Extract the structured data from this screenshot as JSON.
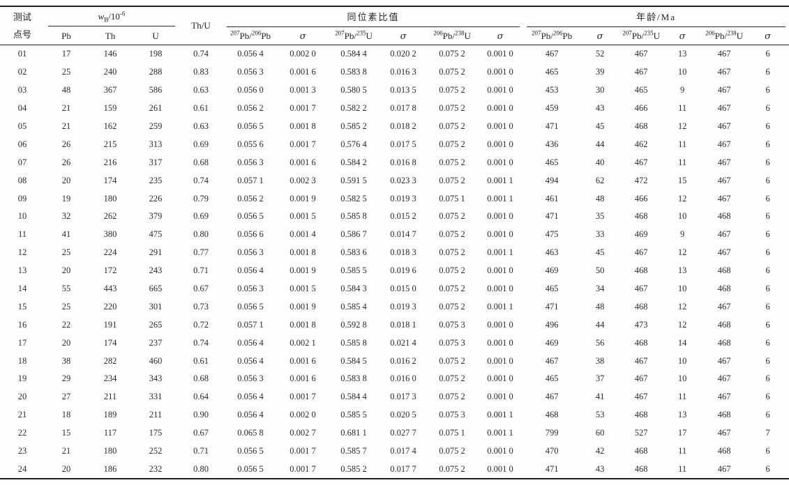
{
  "table": {
    "header": {
      "point_id_line1": "测试",
      "point_id_line2": "点号",
      "wb": {
        "w": "w",
        "sub": "B",
        "mid": "/10",
        "exp": "-6"
      },
      "thu_label": "Th/U",
      "isotope_group_label": "同位素比值",
      "age_group_label": "年龄/Ma",
      "wb_cols": [
        "Pb",
        "Th",
        "U"
      ],
      "sigma": "σ",
      "ratios": [
        {
          "sup1": "207",
          "base1": "Pb/",
          "sup2": "206",
          "base2": "Pb"
        },
        {
          "sup1": "207",
          "base1": "Pb/",
          "sup2": "235",
          "base2": "U"
        },
        {
          "sup1": "206",
          "base1": "Pb/",
          "sup2": "238",
          "base2": "U"
        }
      ]
    },
    "rows": [
      [
        "01",
        "17",
        "146",
        "198",
        "0.74",
        "0.056 4",
        "0.002 0",
        "0.584 4",
        "0.020 2",
        "0.075 2",
        "0.001 0",
        "467",
        "52",
        "467",
        "13",
        "467",
        "6"
      ],
      [
        "02",
        "25",
        "240",
        "288",
        "0.83",
        "0.056 3",
        "0.001 6",
        "0.583 8",
        "0.016 3",
        "0.075 2",
        "0.001 0",
        "465",
        "39",
        "467",
        "10",
        "467",
        "6"
      ],
      [
        "03",
        "48",
        "367",
        "586",
        "0.63",
        "0.056 0",
        "0.001 3",
        "0.580 5",
        "0.013 5",
        "0.075 2",
        "0.001 0",
        "453",
        "30",
        "465",
        "9",
        "467",
        "6"
      ],
      [
        "04",
        "21",
        "159",
        "261",
        "0.61",
        "0.056 2",
        "0.001 7",
        "0.582 2",
        "0.017 8",
        "0.075 2",
        "0.001 0",
        "459",
        "43",
        "466",
        "11",
        "467",
        "6"
      ],
      [
        "05",
        "21",
        "162",
        "259",
        "0.63",
        "0.056 5",
        "0.001 8",
        "0.585 2",
        "0.018 2",
        "0.075 2",
        "0.001 0",
        "471",
        "45",
        "468",
        "12",
        "467",
        "6"
      ],
      [
        "06",
        "26",
        "215",
        "313",
        "0.69",
        "0.055 6",
        "0.001 7",
        "0.576 4",
        "0.017 5",
        "0.075 2",
        "0.001 0",
        "436",
        "44",
        "462",
        "11",
        "467",
        "6"
      ],
      [
        "07",
        "26",
        "216",
        "317",
        "0.68",
        "0.056 3",
        "0.001 6",
        "0.584 2",
        "0.016 8",
        "0.075 2",
        "0.001 0",
        "465",
        "40",
        "467",
        "11",
        "467",
        "6"
      ],
      [
        "08",
        "20",
        "174",
        "235",
        "0.74",
        "0.057 1",
        "0.002 3",
        "0.591 5",
        "0.023 3",
        "0.075 2",
        "0.001 1",
        "494",
        "62",
        "472",
        "15",
        "467",
        "6"
      ],
      [
        "09",
        "19",
        "180",
        "226",
        "0.79",
        "0.056 2",
        "0.001 9",
        "0.582 5",
        "0.019 3",
        "0.075 1",
        "0.001 1",
        "461",
        "48",
        "466",
        "12",
        "467",
        "6"
      ],
      [
        "10",
        "32",
        "262",
        "379",
        "0.69",
        "0.056 5",
        "0.001 5",
        "0.585 8",
        "0.015 2",
        "0.075 2",
        "0.001 0",
        "471",
        "35",
        "468",
        "10",
        "468",
        "6"
      ],
      [
        "11",
        "41",
        "380",
        "475",
        "0.80",
        "0.056 6",
        "0.001 4",
        "0.586 7",
        "0.014 7",
        "0.075 2",
        "0.001 0",
        "475",
        "33",
        "469",
        "9",
        "467",
        "6"
      ],
      [
        "12",
        "25",
        "224",
        "291",
        "0.77",
        "0.056 3",
        "0.001 8",
        "0.583 6",
        "0.018 3",
        "0.075 2",
        "0.001 1",
        "463",
        "45",
        "467",
        "12",
        "467",
        "6"
      ],
      [
        "13",
        "20",
        "172",
        "243",
        "0.71",
        "0.056 4",
        "0.001 9",
        "0.585 5",
        "0.019 6",
        "0.075 2",
        "0.001 0",
        "469",
        "50",
        "468",
        "13",
        "468",
        "6"
      ],
      [
        "14",
        "55",
        "443",
        "665",
        "0.67",
        "0.056 3",
        "0.001 5",
        "0.584 3",
        "0.015 0",
        "0.075 2",
        "0.001 0",
        "465",
        "34",
        "467",
        "10",
        "468",
        "6"
      ],
      [
        "15",
        "25",
        "220",
        "301",
        "0.73",
        "0.056 5",
        "0.001 9",
        "0.585 4",
        "0.019 3",
        "0.075 2",
        "0.001 1",
        "471",
        "48",
        "468",
        "12",
        "467",
        "6"
      ],
      [
        "16",
        "22",
        "191",
        "265",
        "0.72",
        "0.057 1",
        "0.001 8",
        "0.592 8",
        "0.018 1",
        "0.075 3",
        "0.001 0",
        "496",
        "44",
        "473",
        "12",
        "468",
        "6"
      ],
      [
        "17",
        "20",
        "174",
        "237",
        "0.74",
        "0.056 4",
        "0.002 1",
        "0.585 8",
        "0.021 4",
        "0.075 3",
        "0.001 0",
        "469",
        "56",
        "468",
        "14",
        "468",
        "6"
      ],
      [
        "18",
        "38",
        "282",
        "460",
        "0.61",
        "0.056 4",
        "0.001 6",
        "0.584 5",
        "0.016 2",
        "0.075 2",
        "0.001 0",
        "467",
        "38",
        "467",
        "10",
        "467",
        "6"
      ],
      [
        "19",
        "29",
        "234",
        "343",
        "0.68",
        "0.056 3",
        "0.001 6",
        "0.583 8",
        "0.016 0",
        "0.075 2",
        "0.001 0",
        "465",
        "37",
        "467",
        "10",
        "467",
        "6"
      ],
      [
        "20",
        "27",
        "211",
        "331",
        "0.64",
        "0.056 4",
        "0.001 7",
        "0.584 4",
        "0.017 3",
        "0.075 2",
        "0.001 0",
        "467",
        "41",
        "467",
        "11",
        "467",
        "6"
      ],
      [
        "21",
        "18",
        "189",
        "211",
        "0.90",
        "0.056 4",
        "0.002 0",
        "0.585 5",
        "0.020 5",
        "0.075 3",
        "0.001 1",
        "468",
        "53",
        "468",
        "13",
        "468",
        "6"
      ],
      [
        "22",
        "15",
        "117",
        "175",
        "0.67",
        "0.065 8",
        "0.002 7",
        "0.681 1",
        "0.027 7",
        "0.075 1",
        "0.001 1",
        "799",
        "60",
        "527",
        "17",
        "467",
        "7"
      ],
      [
        "23",
        "21",
        "180",
        "252",
        "0.71",
        "0.056 5",
        "0.001 7",
        "0.585 7",
        "0.017 4",
        "0.075 2",
        "0.001 0",
        "470",
        "42",
        "468",
        "11",
        "468",
        "6"
      ],
      [
        "24",
        "20",
        "186",
        "232",
        "0.80",
        "0.056 5",
        "0.001 7",
        "0.585 2",
        "0.017 7",
        "0.075 2",
        "0.001 0",
        "471",
        "43",
        "468",
        "11",
        "467",
        "6"
      ]
    ]
  }
}
